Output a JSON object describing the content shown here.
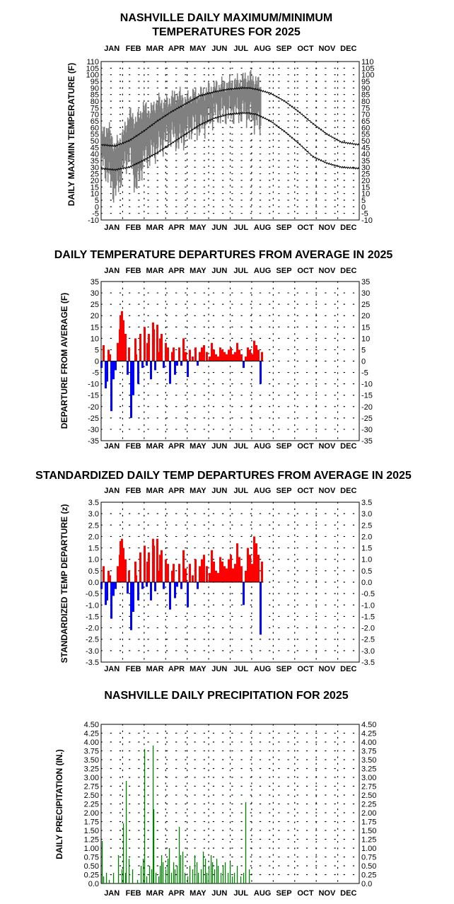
{
  "months": [
    "JAN",
    "FEB",
    "MAR",
    "APR",
    "MAY",
    "JUN",
    "JUL",
    "AUG",
    "SEP",
    "OCT",
    "NOV",
    "DEC"
  ],
  "chart_data": [
    {
      "type": "area",
      "title_lines": [
        "NASHVILLE DAILY MAXIMUM/MINIMUM",
        "TEMPERATURES FOR 2025"
      ],
      "ylabel": "DAILY MAX/MIN TEMPERATURE (F)",
      "xlabel": "",
      "ylim": [
        -10,
        110
      ],
      "ytick_step": 5,
      "ytick_labels": [
        "-10",
        "-5",
        "0",
        "5",
        "10",
        "15",
        "20",
        "25",
        "30",
        "35",
        "40",
        "45",
        "50",
        "55",
        "60",
        "65",
        "70",
        "75",
        "80",
        "85",
        "90",
        "95",
        "100",
        "105",
        "110"
      ],
      "x_categories": [
        "JAN",
        "FEB",
        "MAR",
        "APR",
        "MAY",
        "JUN",
        "JUL",
        "AUG",
        "SEP",
        "OCT",
        "NOV",
        "DEC"
      ],
      "grid": true,
      "series": [
        {
          "color": "#808080",
          "daily_high_samples": {
            "day": [
              1,
              10,
              20,
              32,
              40,
              50,
              60,
              70,
              80,
              90,
              100,
              110,
              120,
              130,
              140,
              150,
              160,
              170,
              180,
              190,
              200,
              210,
              220,
              226
            ],
            "value": [
              55,
              60,
              45,
              55,
              70,
              65,
              75,
              72,
              80,
              78,
              82,
              85,
              80,
              85,
              85,
              88,
              90,
              92,
              93,
              94,
              96,
              98,
              95,
              90
            ]
          },
          "daily_low_samples": {
            "day": [
              1,
              10,
              20,
              32,
              40,
              50,
              60,
              70,
              80,
              90,
              100,
              110,
              120,
              130,
              140,
              150,
              160,
              170,
              180,
              190,
              200,
              210,
              220,
              226
            ],
            "value": [
              35,
              25,
              10,
              30,
              40,
              15,
              35,
              40,
              45,
              50,
              55,
              50,
              55,
              62,
              60,
              65,
              70,
              72,
              72,
              72,
              72,
              70,
              65,
              60
            ]
          }
        },
        {
          "color": "#000000",
          "normal_high": {
            "day": [
              1,
              20,
              40,
              60,
              80,
              100,
              120,
              140,
              160,
              180,
              200,
              210,
              220,
              240,
              260,
              280,
              300,
              320,
              340,
              365
            ],
            "value": [
              47,
              46,
              50,
              57,
              65,
              72,
              78,
              84,
              87,
              89,
              90,
              90,
              89,
              86,
              80,
              72,
              63,
              55,
              49,
              47
            ]
          }
        },
        {
          "color": "#000000",
          "normal_low": {
            "day": [
              1,
              20,
              40,
              60,
              80,
              100,
              120,
              140,
              160,
              180,
              200,
              210,
              220,
              240,
              260,
              280,
              300,
              320,
              340,
              365
            ],
            "value": [
              29,
              28,
              30,
              35,
              41,
              48,
              55,
              62,
              67,
              70,
              71,
              71,
              70,
              65,
              57,
              48,
              38,
              33,
              30,
              29
            ]
          }
        }
      ]
    },
    {
      "type": "bar",
      "title": "DAILY TEMPERATURE DEPARTURES FROM AVERAGE IN 2025",
      "ylabel": "DEPARTURE FROM AVERAGE (F)",
      "xlabel": "",
      "ylim": [
        -35,
        35
      ],
      "ytick_step": 5,
      "ytick_labels": [
        "-35",
        "-30",
        "-25",
        "-20",
        "-15",
        "-10",
        "-5",
        "0",
        "5",
        "10",
        "15",
        "20",
        "25",
        "30",
        "35"
      ],
      "x_categories": [
        "JAN",
        "FEB",
        "MAR",
        "APR",
        "MAY",
        "JUN",
        "JUL",
        "AUG",
        "SEP",
        "OCT",
        "NOV",
        "DEC"
      ],
      "grid": true,
      "positive_color": "#ff0000",
      "negative_color": "#0000ff",
      "x": [
        1,
        4,
        7,
        9,
        11,
        13,
        15,
        18,
        21,
        24,
        27,
        28,
        30,
        32,
        35,
        38,
        40,
        43,
        46,
        49,
        50,
        53,
        56,
        59,
        62,
        65,
        66,
        68,
        71,
        74,
        75,
        77,
        80,
        82,
        84,
        86,
        89,
        92,
        95,
        98,
        101,
        103,
        105,
        108,
        111,
        114,
        117,
        120,
        123,
        126,
        130,
        134,
        137,
        140,
        143,
        146,
        150,
        154,
        157,
        160,
        163,
        166,
        169,
        172,
        175,
        178,
        181,
        184,
        187,
        190,
        193,
        196,
        199,
        202,
        205,
        208,
        211,
        214,
        217,
        220,
        223,
        226,
        228
      ],
      "values": [
        -3,
        7,
        -12,
        -9,
        5,
        3,
        -22,
        -8,
        -4,
        8,
        14,
        20,
        22,
        18,
        12,
        -6,
        6,
        -25,
        -15,
        10,
        3,
        -10,
        12,
        -3,
        15,
        -2,
        8,
        12,
        -8,
        17,
        14,
        -4,
        16,
        4,
        10,
        12,
        -3,
        8,
        6,
        -10,
        4,
        6,
        -6,
        -2,
        6,
        -2,
        10,
        4,
        -7,
        5,
        2,
        6,
        -2,
        4,
        6,
        7,
        4,
        2,
        8,
        5,
        3,
        2,
        6,
        5,
        4,
        3,
        5,
        6,
        3,
        4,
        8,
        5,
        3,
        -3,
        2,
        6,
        5,
        3,
        9,
        7,
        5,
        -10,
        4
      ]
    },
    {
      "type": "bar",
      "title": "STANDARDIZED DAILY TEMP DEPARTURES FROM AVERAGE IN 2025",
      "ylabel": "STANDARDIZED TEMP DEPARTURE (z)",
      "xlabel": "",
      "ylim": [
        -3.5,
        3.5
      ],
      "ytick_step": 0.5,
      "ytick_labels": [
        "-3.5",
        "-3.0",
        "-2.5",
        "-2.0",
        "-1.5",
        "-1.0",
        "-0.5",
        "0.0",
        "0.5",
        "1.0",
        "1.5",
        "2.0",
        "2.5",
        "3.0",
        "3.5"
      ],
      "x_categories": [
        "JAN",
        "FEB",
        "MAR",
        "APR",
        "MAY",
        "JUN",
        "JUL",
        "AUG",
        "SEP",
        "OCT",
        "NOV",
        "DEC"
      ],
      "grid": true,
      "positive_color": "#ff0000",
      "negative_color": "#0000ff",
      "x": [
        1,
        4,
        7,
        9,
        11,
        13,
        15,
        18,
        21,
        24,
        27,
        28,
        30,
        32,
        35,
        38,
        40,
        43,
        46,
        49,
        50,
        53,
        56,
        59,
        62,
        65,
        66,
        68,
        71,
        74,
        75,
        77,
        80,
        82,
        84,
        86,
        89,
        92,
        95,
        98,
        101,
        103,
        105,
        108,
        111,
        114,
        117,
        120,
        123,
        126,
        130,
        134,
        137,
        140,
        143,
        146,
        150,
        154,
        157,
        160,
        163,
        166,
        169,
        172,
        175,
        178,
        181,
        184,
        187,
        190,
        193,
        196,
        199,
        202,
        205,
        208,
        211,
        214,
        217,
        220,
        223,
        226,
        228
      ],
      "values": [
        -0.3,
        0.7,
        -1.0,
        -0.8,
        0.5,
        0.3,
        -1.6,
        -0.6,
        -0.3,
        0.7,
        1.2,
        1.8,
        1.9,
        1.5,
        1.0,
        -0.5,
        0.5,
        -2.1,
        -1.3,
        0.9,
        0.3,
        -0.8,
        1.3,
        -0.3,
        1.6,
        -0.2,
        0.9,
        1.3,
        -0.8,
        1.9,
        1.6,
        -0.4,
        1.9,
        0.5,
        1.2,
        1.4,
        -0.3,
        1.0,
        0.8,
        -1.2,
        0.5,
        0.8,
        -0.7,
        -0.2,
        0.8,
        -0.3,
        1.4,
        0.6,
        -1.1,
        0.8,
        0.3,
        1.0,
        -0.3,
        0.7,
        1.0,
        1.2,
        0.7,
        0.4,
        1.4,
        0.9,
        0.5,
        0.4,
        1.1,
        0.9,
        0.7,
        0.6,
        1.0,
        1.2,
        0.6,
        0.8,
        1.7,
        1.1,
        0.7,
        -1.0,
        0.5,
        1.5,
        1.2,
        0.8,
        2.0,
        1.7,
        1.2,
        -2.3,
        0.9
      ]
    },
    {
      "type": "bar",
      "title": "NASHVILLE DAILY PRECIPITATION FOR 2025",
      "ylabel": "DAILY PRECIPITATION (IN.)",
      "xlabel": "",
      "ylim": [
        0,
        4.5
      ],
      "ytick_step": 0.25,
      "ytick_labels": [
        "0.0",
        "0.25",
        "0.50",
        "0.75",
        "1.00",
        "1.25",
        "1.50",
        "1.75",
        "2.00",
        "2.25",
        "2.50",
        "2.75",
        "3.00",
        "3.25",
        "3.50",
        "3.75",
        "4.00",
        "4.25",
        "4.50"
      ],
      "x_categories": [
        "JAN",
        "FEB",
        "MAR",
        "APR",
        "MAY",
        "JUN",
        "JUL",
        "AUG",
        "SEP",
        "OCT",
        "NOV",
        "DEC"
      ],
      "grid": true,
      "bar_color": "#008000",
      "x": [
        2,
        4,
        8,
        12,
        18,
        25,
        30,
        32,
        35,
        36,
        40,
        45,
        52,
        57,
        60,
        62,
        65,
        69,
        72,
        74,
        75,
        78,
        82,
        84,
        86,
        88,
        92,
        95,
        97,
        100,
        103,
        105,
        108,
        111,
        113,
        116,
        119,
        123,
        126,
        130,
        133,
        136,
        138,
        142,
        145,
        148,
        150,
        153,
        156,
        158,
        161,
        164,
        166,
        170,
        173,
        176,
        180,
        183,
        186,
        189,
        193,
        198,
        202,
        205,
        210
      ],
      "values": [
        1.2,
        0.2,
        0.3,
        0.1,
        0.3,
        0.8,
        0.4,
        1.7,
        0.3,
        2.9,
        0.7,
        0.4,
        0.1,
        0.5,
        0.7,
        3.8,
        0.2,
        0.5,
        0.4,
        3.9,
        2.1,
        0.3,
        0.2,
        0.5,
        0.8,
        0.6,
        0.4,
        0.7,
        1.0,
        0.3,
        0.6,
        0.4,
        0.5,
        1.6,
        0.8,
        0.9,
        0.3,
        0.2,
        0.5,
        0.4,
        0.8,
        0.6,
        0.3,
        0.4,
        0.9,
        0.7,
        0.3,
        0.5,
        0.8,
        0.6,
        0.4,
        0.7,
        0.5,
        0.3,
        0.5,
        0.6,
        0.3,
        0.6,
        0.2,
        0.3,
        0.5,
        0.2,
        0.3,
        2.3,
        0.4
      ]
    }
  ]
}
